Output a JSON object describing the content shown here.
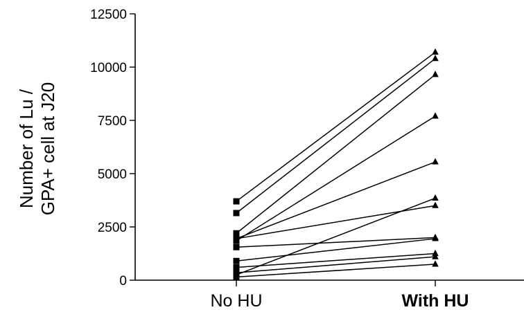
{
  "chart_data": {
    "type": "line",
    "chart_style": "paired-before-after",
    "title": "",
    "xlabel": "",
    "ylabel_lines": [
      "Number of Lu /",
      "GPA+ cell at J20"
    ],
    "ylim": [
      0,
      12500
    ],
    "yticks": [
      0,
      2500,
      5000,
      7500,
      10000,
      12500
    ],
    "categories": [
      "No HU",
      "With HU"
    ],
    "category_colors": [
      "#000000",
      "#cc66ff"
    ],
    "markers": [
      "square",
      "triangle"
    ],
    "grid": false,
    "legend": "none",
    "pairs": [
      {
        "values": [
          3700,
          10700
        ]
      },
      {
        "values": [
          3150,
          10400
        ]
      },
      {
        "values": [
          2200,
          9650
        ]
      },
      {
        "values": [
          1850,
          7700
        ]
      },
      {
        "values": [
          1950,
          5550
        ]
      },
      {
        "values": [
          250,
          3850
        ]
      },
      {
        "values": [
          1950,
          3500
        ]
      },
      {
        "values": [
          1550,
          2000
        ]
      },
      {
        "values": [
          900,
          1950
        ]
      },
      {
        "values": [
          600,
          1250
        ]
      },
      {
        "values": [
          350,
          1100
        ]
      },
      {
        "values": [
          150,
          750
        ]
      }
    ]
  }
}
